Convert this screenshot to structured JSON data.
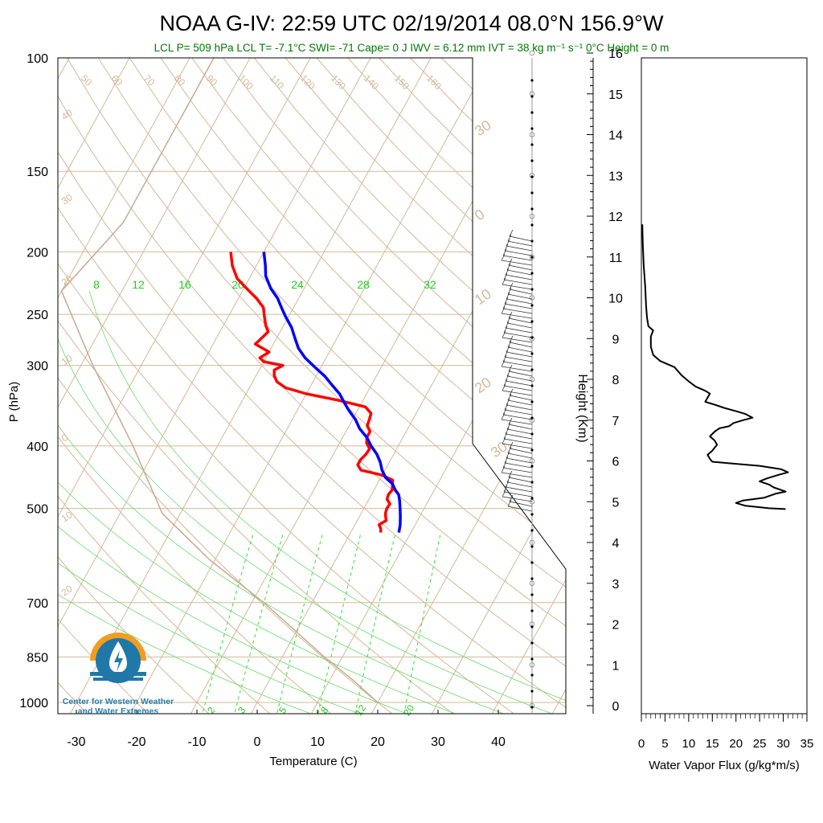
{
  "header": {
    "title": "NOAA G-IV: 22:59 UTC 02/19/2014  08.0°N 156.9°W",
    "subtitle": "LCL P= 509 hPa  LCL T= -7.1°C  SWI= -71  Cape= 0 J  IWV = 6.12 mm  IVT = 38 kg m⁻¹ s⁻¹  0°C Height = 0 m"
  },
  "logo": {
    "line1": "Center for Western Weather",
    "line2": "and Water Extremes",
    "colors": {
      "orange": "#f39c1f",
      "blue": "#1f78a8",
      "text": "#2a7fa8"
    }
  },
  "colors": {
    "temperature": "#ff0000",
    "dewpoint": "#0000ff",
    "isotherm": "#d4b898",
    "dry_adiabat": "#d4b898",
    "mixing_ratio": "#33dd33",
    "moist_adiabat": "#66dd66",
    "parcel": "#c8a890",
    "flux": "#000000"
  },
  "chart_data": [
    {
      "type": "line",
      "name": "skew-t",
      "xlabel": "Temperature (C)",
      "ylabel": "P (hPa)",
      "xlim": [
        -35,
        50
      ],
      "ylim": [
        1050,
        100
      ],
      "y_scale": "log",
      "x_ticks": [
        "-30",
        "-20",
        "-10",
        "0",
        "10",
        "20",
        "30",
        "40"
      ],
      "x_tick_values": [
        -30,
        -20,
        -10,
        0,
        10,
        20,
        30,
        40
      ],
      "y_ticks": [
        "100",
        "150",
        "200",
        "250",
        "300",
        "400",
        "500",
        "700",
        "850",
        "1000"
      ],
      "y_tick_values": [
        100,
        150,
        200,
        250,
        300,
        400,
        500,
        700,
        850,
        1000
      ],
      "isotherm_labels": [
        "40",
        "30",
        "20",
        "10",
        "0",
        "10",
        "20",
        "30",
        "0",
        "10",
        "20",
        "30"
      ],
      "isotherm_label_values": [
        -40,
        -30,
        -20,
        -10,
        0,
        10,
        20,
        30,
        0,
        10,
        20,
        30
      ],
      "dry_adiabat_labels": [
        "50",
        "60",
        "70",
        "80",
        "90",
        "100",
        "110",
        "120",
        "130",
        "140",
        "150",
        "160"
      ],
      "mixing_ratio_labels": [
        "2",
        "3",
        "5",
        "8",
        "12",
        "20"
      ],
      "mixing_ratio_values": [
        2,
        3,
        5,
        8,
        12,
        20
      ],
      "theta_e_labels": [
        "8",
        "12",
        "16",
        "20",
        "24",
        "28",
        "32"
      ],
      "series": [
        {
          "name": "Temperature",
          "points": [
            [
              545,
              5.0
            ],
            [
              537,
              4.6
            ],
            [
              530,
              4.0
            ],
            [
              522,
              4.8
            ],
            [
              514,
              4.3
            ],
            [
              508,
              4.0
            ],
            [
              500,
              3.8
            ],
            [
              492,
              3.9
            ],
            [
              484,
              3.0
            ],
            [
              476,
              2.8
            ],
            [
              468,
              3.0
            ],
            [
              460,
              2.6
            ],
            [
              452,
              2.2
            ],
            [
              444,
              0.0
            ],
            [
              436,
              -4.0
            ],
            [
              428,
              -5.0
            ],
            [
              420,
              -5.0
            ],
            [
              412,
              -4.6
            ],
            [
              404,
              -4.5
            ],
            [
              396,
              -5.5
            ],
            [
              388,
              -6.0
            ],
            [
              380,
              -6.0
            ],
            [
              372,
              -7.0
            ],
            [
              364,
              -7.2
            ],
            [
              356,
              -7.5
            ],
            [
              348,
              -9.0
            ],
            [
              340,
              -14.0
            ],
            [
              332,
              -20.0
            ],
            [
              325,
              -24.0
            ],
            [
              318,
              -26.0
            ],
            [
              311,
              -27.0
            ],
            [
              305,
              -27.5
            ],
            [
              300,
              -26.5
            ],
            [
              296,
              -30.0
            ],
            [
              292,
              -31.0
            ],
            [
              286,
              -30.0
            ],
            [
              278,
              -33.0
            ],
            [
              272,
              -32.5
            ],
            [
              266,
              -32.0
            ],
            [
              260,
              -33.0
            ],
            [
              252,
              -34.0
            ],
            [
              244,
              -35.0
            ],
            [
              236,
              -37.0
            ],
            [
              228,
              -39.5
            ],
            [
              220,
              -42.0
            ],
            [
              210,
              -44.0
            ],
            [
              200,
              -45.5
            ]
          ]
        },
        {
          "name": "Dewpoint",
          "points": [
            [
              545,
              8.0
            ],
            [
              530,
              7.5
            ],
            [
              515,
              6.8
            ],
            [
              500,
              6.0
            ],
            [
              486,
              5.2
            ],
            [
              476,
              4.5
            ],
            [
              468,
              3.5
            ],
            [
              458,
              2.5
            ],
            [
              448,
              0.8
            ],
            [
              436,
              -0.5
            ],
            [
              424,
              -1.5
            ],
            [
              412,
              -2.8
            ],
            [
              400,
              -4.5
            ],
            [
              388,
              -6.0
            ],
            [
              376,
              -8.0
            ],
            [
              364,
              -9.5
            ],
            [
              352,
              -11.5
            ],
            [
              342,
              -13.0
            ],
            [
              332,
              -14.5
            ],
            [
              322,
              -16.5
            ],
            [
              312,
              -18.5
            ],
            [
              302,
              -21.0
            ],
            [
              292,
              -23.5
            ],
            [
              282,
              -25.5
            ],
            [
              272,
              -27.0
            ],
            [
              262,
              -28.5
            ],
            [
              252,
              -30.5
            ],
            [
              244,
              -32.0
            ],
            [
              236,
              -33.5
            ],
            [
              228,
              -35.5
            ],
            [
              218,
              -37.5
            ],
            [
              210,
              -38.5
            ],
            [
              200,
              -40.0
            ]
          ]
        },
        {
          "name": "Parcel",
          "points": [
            [
              1000,
              20.0
            ],
            [
              925,
              14.0
            ],
            [
              850,
              7.0
            ],
            [
              700,
              -8.0
            ],
            [
              600,
              -21.0
            ],
            [
              509,
              -33.0
            ],
            [
              400,
              -44.0
            ],
            [
              300,
              -58.0
            ],
            [
              230,
              -70.0
            ],
            [
              180,
              -66.0
            ],
            [
              140,
              -66.0
            ],
            [
              100,
              -66.0
            ]
          ]
        }
      ]
    },
    {
      "type": "line",
      "name": "water-vapor-flux",
      "xlabel": "Water Vapor Flux (g/kg*m/s)",
      "ylabel": "Height (Km)",
      "xlim": [
        0,
        35
      ],
      "ylim": [
        -0.2,
        16.4
      ],
      "x_ticks": [
        "0",
        "5",
        "10",
        "15",
        "20",
        "25",
        "30",
        "35"
      ],
      "x_tick_values": [
        0,
        5,
        10,
        15,
        20,
        25,
        30,
        35
      ],
      "y_ticks": [
        "0",
        "1",
        "2",
        "3",
        "4",
        "5",
        "6",
        "7",
        "8",
        "9",
        "10",
        "11",
        "12",
        "13",
        "14",
        "15",
        "16"
      ],
      "y_tick_values": [
        0,
        1,
        2,
        3,
        4,
        5,
        6,
        7,
        8,
        9,
        10,
        11,
        12,
        13,
        14,
        15,
        16
      ],
      "series": [
        {
          "name": "Flux",
          "points": [
            [
              30.5,
              4.82
            ],
            [
              27.0,
              4.84
            ],
            [
              22.0,
              4.9
            ],
            [
              20.0,
              4.97
            ],
            [
              21.5,
              5.03
            ],
            [
              26.0,
              5.1
            ],
            [
              28.5,
              5.2
            ],
            [
              30.5,
              5.25
            ],
            [
              28.0,
              5.35
            ],
            [
              27.0,
              5.42
            ],
            [
              25.0,
              5.5
            ],
            [
              26.5,
              5.57
            ],
            [
              29.0,
              5.66
            ],
            [
              31.0,
              5.72
            ],
            [
              29.5,
              5.8
            ],
            [
              25.0,
              5.88
            ],
            [
              20.0,
              5.93
            ],
            [
              15.0,
              5.98
            ],
            [
              14.5,
              6.05
            ],
            [
              14.0,
              6.15
            ],
            [
              15.0,
              6.25
            ],
            [
              16.0,
              6.4
            ],
            [
              15.5,
              6.5
            ],
            [
              14.5,
              6.6
            ],
            [
              15.5,
              6.72
            ],
            [
              16.5,
              6.8
            ],
            [
              18.5,
              6.85
            ],
            [
              19.5,
              6.93
            ],
            [
              21.5,
              7.0
            ],
            [
              23.5,
              7.06
            ],
            [
              22.0,
              7.15
            ],
            [
              20.0,
              7.22
            ],
            [
              17.5,
              7.3
            ],
            [
              15.5,
              7.38
            ],
            [
              13.5,
              7.45
            ],
            [
              14.0,
              7.55
            ],
            [
              14.5,
              7.65
            ],
            [
              13.5,
              7.72
            ],
            [
              11.5,
              7.82
            ],
            [
              10.0,
              7.95
            ],
            [
              8.5,
              8.1
            ],
            [
              7.0,
              8.3
            ],
            [
              4.0,
              8.45
            ],
            [
              2.5,
              8.6
            ],
            [
              2.0,
              8.8
            ],
            [
              2.0,
              9.05
            ],
            [
              2.5,
              9.2
            ],
            [
              1.5,
              9.3
            ],
            [
              1.2,
              9.5
            ],
            [
              1.0,
              9.8
            ],
            [
              0.8,
              10.3
            ],
            [
              0.5,
              10.8
            ],
            [
              0.3,
              11.3
            ],
            [
              0.2,
              11.8
            ]
          ]
        }
      ]
    }
  ]
}
